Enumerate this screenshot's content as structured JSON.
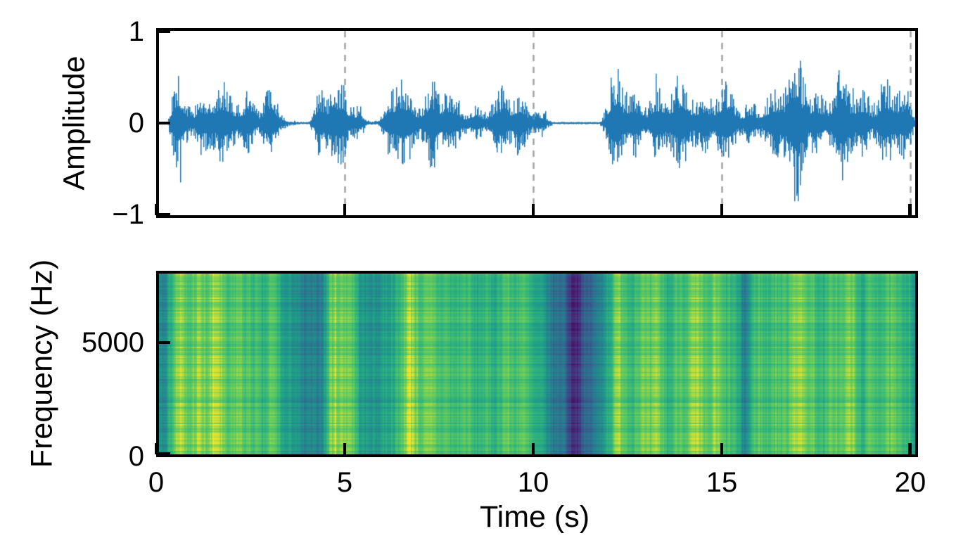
{
  "figure": {
    "background": "#ffffff",
    "xlabel": "Time (s)",
    "time_tick_labels": [
      "0",
      "5",
      "10",
      "15",
      "20"
    ],
    "time_tick_values": [
      0,
      5,
      10,
      15,
      20
    ],
    "x_max_s": 20.21,
    "spine_color": "#000000",
    "text_color": "#000000"
  },
  "chart_data": [
    {
      "type": "line",
      "name": "waveform",
      "ylabel": "Amplitude",
      "line_color": "#1f77b4",
      "ylim": [
        -1,
        1
      ],
      "ytick_labels": [
        "1",
        "0",
        "−1"
      ],
      "ytick_values": [
        1,
        0,
        -1
      ],
      "x_range_s": [
        0,
        20.21
      ],
      "grid": {
        "axis": "x",
        "positions": [
          5,
          10,
          15,
          20
        ],
        "style": "dashed",
        "color": "#a6a6a6"
      },
      "envelope_t_amp": [
        [
          0,
          0.02
        ],
        [
          0.3,
          0.02
        ],
        [
          0.45,
          0.55
        ],
        [
          0.55,
          0.75
        ],
        [
          0.7,
          0.5
        ],
        [
          0.85,
          0.55
        ],
        [
          1.0,
          0.45
        ],
        [
          1.15,
          0.55
        ],
        [
          1.3,
          0.42
        ],
        [
          1.5,
          0.5
        ],
        [
          1.65,
          0.58
        ],
        [
          1.8,
          0.45
        ],
        [
          2.0,
          0.4
        ],
        [
          2.15,
          0.52
        ],
        [
          2.3,
          0.45
        ],
        [
          2.45,
          0.62
        ],
        [
          2.6,
          0.4
        ],
        [
          2.75,
          0.35
        ],
        [
          2.9,
          0.45
        ],
        [
          3.05,
          0.4
        ],
        [
          3.2,
          0.3
        ],
        [
          3.35,
          0.12
        ],
        [
          3.5,
          0.04
        ],
        [
          3.8,
          0.03
        ],
        [
          4.05,
          0.04
        ],
        [
          4.2,
          0.3
        ],
        [
          4.35,
          0.55
        ],
        [
          4.5,
          0.48
        ],
        [
          4.65,
          0.55
        ],
        [
          4.8,
          0.45
        ],
        [
          4.95,
          0.55
        ],
        [
          5.1,
          0.48
        ],
        [
          5.25,
          0.4
        ],
        [
          5.4,
          0.3
        ],
        [
          5.55,
          0.1
        ],
        [
          5.7,
          0.05
        ],
        [
          5.9,
          0.05
        ],
        [
          6.05,
          0.25
        ],
        [
          6.2,
          0.45
        ],
        [
          6.35,
          0.65
        ],
        [
          6.5,
          0.68
        ],
        [
          6.65,
          0.55
        ],
        [
          6.8,
          0.65
        ],
        [
          6.95,
          0.6
        ],
        [
          7.1,
          0.5
        ],
        [
          7.25,
          0.62
        ],
        [
          7.4,
          0.65
        ],
        [
          7.55,
          0.5
        ],
        [
          7.7,
          0.42
        ],
        [
          7.85,
          0.3
        ],
        [
          8.0,
          0.38
        ],
        [
          8.15,
          0.32
        ],
        [
          8.3,
          0.28
        ],
        [
          8.45,
          0.3
        ],
        [
          8.6,
          0.33
        ],
        [
          8.75,
          0.28
        ],
        [
          8.9,
          0.32
        ],
        [
          9.05,
          0.38
        ],
        [
          9.2,
          0.48
        ],
        [
          9.35,
          0.42
        ],
        [
          9.5,
          0.46
        ],
        [
          9.65,
          0.5
        ],
        [
          9.8,
          0.4
        ],
        [
          9.95,
          0.35
        ],
        [
          10.1,
          0.32
        ],
        [
          10.25,
          0.2
        ],
        [
          10.4,
          0.06
        ],
        [
          10.6,
          0.02
        ],
        [
          11.0,
          0.015
        ],
        [
          11.4,
          0.015
        ],
        [
          11.75,
          0.03
        ],
        [
          11.95,
          0.3
        ],
        [
          12.1,
          0.6
        ],
        [
          12.25,
          0.75
        ],
        [
          12.4,
          0.62
        ],
        [
          12.55,
          0.5
        ],
        [
          12.7,
          0.55
        ],
        [
          12.85,
          0.48
        ],
        [
          13.0,
          0.58
        ],
        [
          13.15,
          0.62
        ],
        [
          13.3,
          0.5
        ],
        [
          13.45,
          0.42
        ],
        [
          13.6,
          0.45
        ],
        [
          13.75,
          0.55
        ],
        [
          13.9,
          0.6
        ],
        [
          14.05,
          0.68
        ],
        [
          14.2,
          0.75
        ],
        [
          14.35,
          0.6
        ],
        [
          14.5,
          0.5
        ],
        [
          14.65,
          0.55
        ],
        [
          14.8,
          0.58
        ],
        [
          14.95,
          0.48
        ],
        [
          15.1,
          0.52
        ],
        [
          15.25,
          0.45
        ],
        [
          15.4,
          0.38
        ],
        [
          15.55,
          0.22
        ],
        [
          15.7,
          0.35
        ],
        [
          15.85,
          0.45
        ],
        [
          16.0,
          0.52
        ],
        [
          16.15,
          0.45
        ],
        [
          16.3,
          0.42
        ],
        [
          16.45,
          0.5
        ],
        [
          16.6,
          0.55
        ],
        [
          16.75,
          0.62
        ],
        [
          16.9,
          0.9
        ],
        [
          17.0,
          1.15
        ],
        [
          17.1,
          1.05
        ],
        [
          17.2,
          1.15
        ],
        [
          17.35,
          0.7
        ],
        [
          17.5,
          0.55
        ],
        [
          17.65,
          0.5
        ],
        [
          17.8,
          0.48
        ],
        [
          17.95,
          0.55
        ],
        [
          18.1,
          0.62
        ],
        [
          18.25,
          0.9
        ],
        [
          18.4,
          0.6
        ],
        [
          18.55,
          0.52
        ],
        [
          18.7,
          0.55
        ],
        [
          18.85,
          0.62
        ],
        [
          19.0,
          0.58
        ],
        [
          19.15,
          0.62
        ],
        [
          19.3,
          0.65
        ],
        [
          19.45,
          0.5
        ],
        [
          19.6,
          0.55
        ],
        [
          19.75,
          0.5
        ],
        [
          19.9,
          0.48
        ],
        [
          20.0,
          0.35
        ],
        [
          20.1,
          0.15
        ],
        [
          20.21,
          0.1
        ]
      ]
    },
    {
      "type": "heatmap",
      "name": "spectrogram",
      "ylabel": "Frequency (Hz)",
      "ytick_labels": [
        "5000",
        "0"
      ],
      "ytick_values": [
        5000,
        0
      ],
      "freq_range_hz": [
        0,
        8128
      ],
      "colormap": "viridis",
      "colormap_stops": [
        [
          0.0,
          "#440154"
        ],
        [
          0.125,
          "#482878"
        ],
        [
          0.25,
          "#3e4989"
        ],
        [
          0.375,
          "#31688e"
        ],
        [
          0.5,
          "#26828e"
        ],
        [
          0.625,
          "#1f9e89"
        ],
        [
          0.75,
          "#35b779"
        ],
        [
          0.875,
          "#6ece58"
        ],
        [
          1.0,
          "#fde725"
        ]
      ],
      "time_step_s": 0.2,
      "intensity": [
        0.5,
        0.52,
        0.78,
        0.88,
        0.85,
        0.84,
        0.82,
        0.84,
        0.86,
        0.8,
        0.78,
        0.83,
        0.84,
        0.74,
        0.7,
        0.78,
        0.7,
        0.6,
        0.56,
        0.54,
        0.5,
        0.44,
        0.55,
        0.78,
        0.84,
        0.86,
        0.78,
        0.66,
        0.58,
        0.56,
        0.66,
        0.58,
        0.7,
        0.84,
        0.88,
        0.84,
        0.8,
        0.84,
        0.78,
        0.7,
        0.75,
        0.72,
        0.7,
        0.73,
        0.7,
        0.75,
        0.78,
        0.76,
        0.78,
        0.7,
        0.68,
        0.6,
        0.52,
        0.45,
        0.4,
        0.18,
        0.12,
        0.3,
        0.42,
        0.48,
        0.72,
        0.88,
        0.82,
        0.78,
        0.76,
        0.8,
        0.82,
        0.76,
        0.74,
        0.78,
        0.82,
        0.88,
        0.8,
        0.78,
        0.8,
        0.76,
        0.78,
        0.66,
        0.52,
        0.7,
        0.78,
        0.74,
        0.72,
        0.78,
        0.82,
        0.9,
        0.9,
        0.78,
        0.74,
        0.73,
        0.76,
        0.8,
        0.84,
        0.76,
        0.74,
        0.78,
        0.8,
        0.74,
        0.76,
        0.72,
        0.66,
        0.5
      ]
    }
  ]
}
